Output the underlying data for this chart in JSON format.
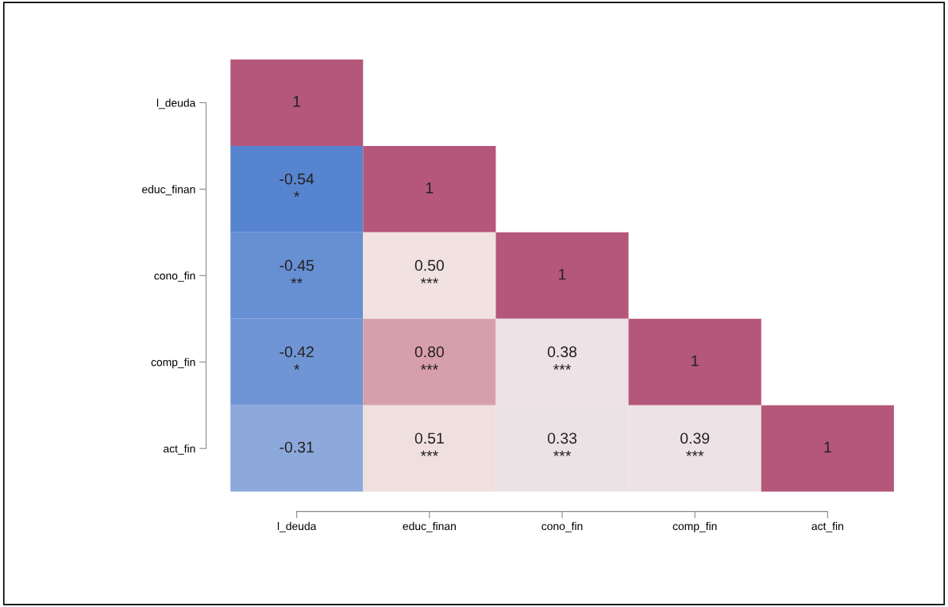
{
  "chart_data": {
    "type": "heatmap",
    "categories": [
      "l_deuda",
      "educ_finan",
      "cono_fin",
      "comp_fin",
      "act_fin"
    ],
    "y_categories": [
      "l_deuda",
      "educ_finan",
      "cono_fin",
      "comp_fin",
      "act_fin"
    ],
    "cells": [
      [
        1,
        null,
        null,
        null,
        null
      ],
      [
        -0.54,
        1,
        null,
        null,
        null
      ],
      [
        -0.45,
        0.5,
        1,
        null,
        null
      ],
      [
        -0.42,
        0.8,
        0.38,
        1,
        null
      ],
      [
        -0.31,
        0.51,
        0.33,
        0.39,
        1
      ]
    ],
    "cell_labels": [
      [
        "1",
        null,
        null,
        null,
        null
      ],
      [
        "-0.54\n*",
        "1",
        null,
        null,
        null
      ],
      [
        "-0.45\n**",
        "0.50\n***",
        "1",
        null,
        null
      ],
      [
        "-0.42\n*",
        "0.80\n***",
        "0.38\n***",
        "1",
        null
      ],
      [
        "-0.31",
        "0.51\n***",
        "0.33\n***",
        "0.39\n***",
        "1"
      ]
    ]
  }
}
